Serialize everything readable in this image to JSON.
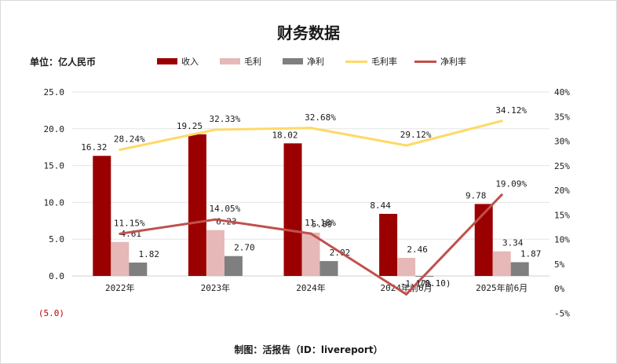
{
  "title": "财务数据",
  "unit_label": "单位：亿人民币",
  "source": "制图：活报告（ID：livereport）",
  "chart_data": {
    "type": "bar",
    "categories": [
      "2022年",
      "2023年",
      "2024年",
      "2024年前6月",
      "2025年前6月"
    ],
    "series": [
      {
        "name": "收入",
        "kind": "bar",
        "axis": "left",
        "color": "#9b0000",
        "values": [
          16.32,
          19.25,
          18.02,
          8.44,
          9.78
        ],
        "labels": [
          "16.32",
          "19.25",
          "18.02",
          "8.44",
          "9.78"
        ]
      },
      {
        "name": "毛利",
        "kind": "bar",
        "axis": "left",
        "color": "#e6b8b7",
        "values": [
          4.61,
          6.23,
          5.89,
          2.46,
          3.34
        ],
        "labels": [
          "4.61",
          "6.23",
          "5.89",
          "2.46",
          "3.34"
        ]
      },
      {
        "name": "净利",
        "kind": "bar",
        "axis": "left",
        "color": "#7f7f7f",
        "values": [
          1.82,
          2.7,
          2.02,
          -0.1,
          1.87
        ],
        "labels": [
          "1.82",
          "2.70",
          "2.02",
          "(0.10)",
          "1.87"
        ]
      },
      {
        "name": "毛利率",
        "kind": "line",
        "axis": "right",
        "color": "#ffd966",
        "values": [
          28.24,
          32.33,
          32.68,
          29.12,
          34.12
        ],
        "labels": [
          "28.24%",
          "32.33%",
          "32.68%",
          "29.12%",
          "34.12%"
        ]
      },
      {
        "name": "净利率",
        "kind": "line",
        "axis": "right",
        "color": "#c0504d",
        "values": [
          11.15,
          14.05,
          11.18,
          -1.17,
          19.09
        ],
        "labels": [
          "11.15%",
          "14.05%",
          "11.18%",
          "-1.17%",
          "19.09%"
        ]
      }
    ],
    "y_left": {
      "min": -5,
      "max": 25,
      "ticks": [
        "(5.0)",
        "0.0",
        "5.0",
        "10.0",
        "15.0",
        "20.0",
        "25.0"
      ],
      "tick_values": [
        -5,
        0,
        5,
        10,
        15,
        20,
        25
      ]
    },
    "y_right": {
      "min": -5,
      "max": 40,
      "ticks": [
        "-5%",
        "0%",
        "5%",
        "10%",
        "15%",
        "20%",
        "25%",
        "30%",
        "35%",
        "40%"
      ],
      "tick_values": [
        -5,
        0,
        5,
        10,
        15,
        20,
        25,
        30,
        35,
        40
      ]
    },
    "negative_tick_color": "#c00000",
    "grid": true,
    "legend_position": "top"
  }
}
